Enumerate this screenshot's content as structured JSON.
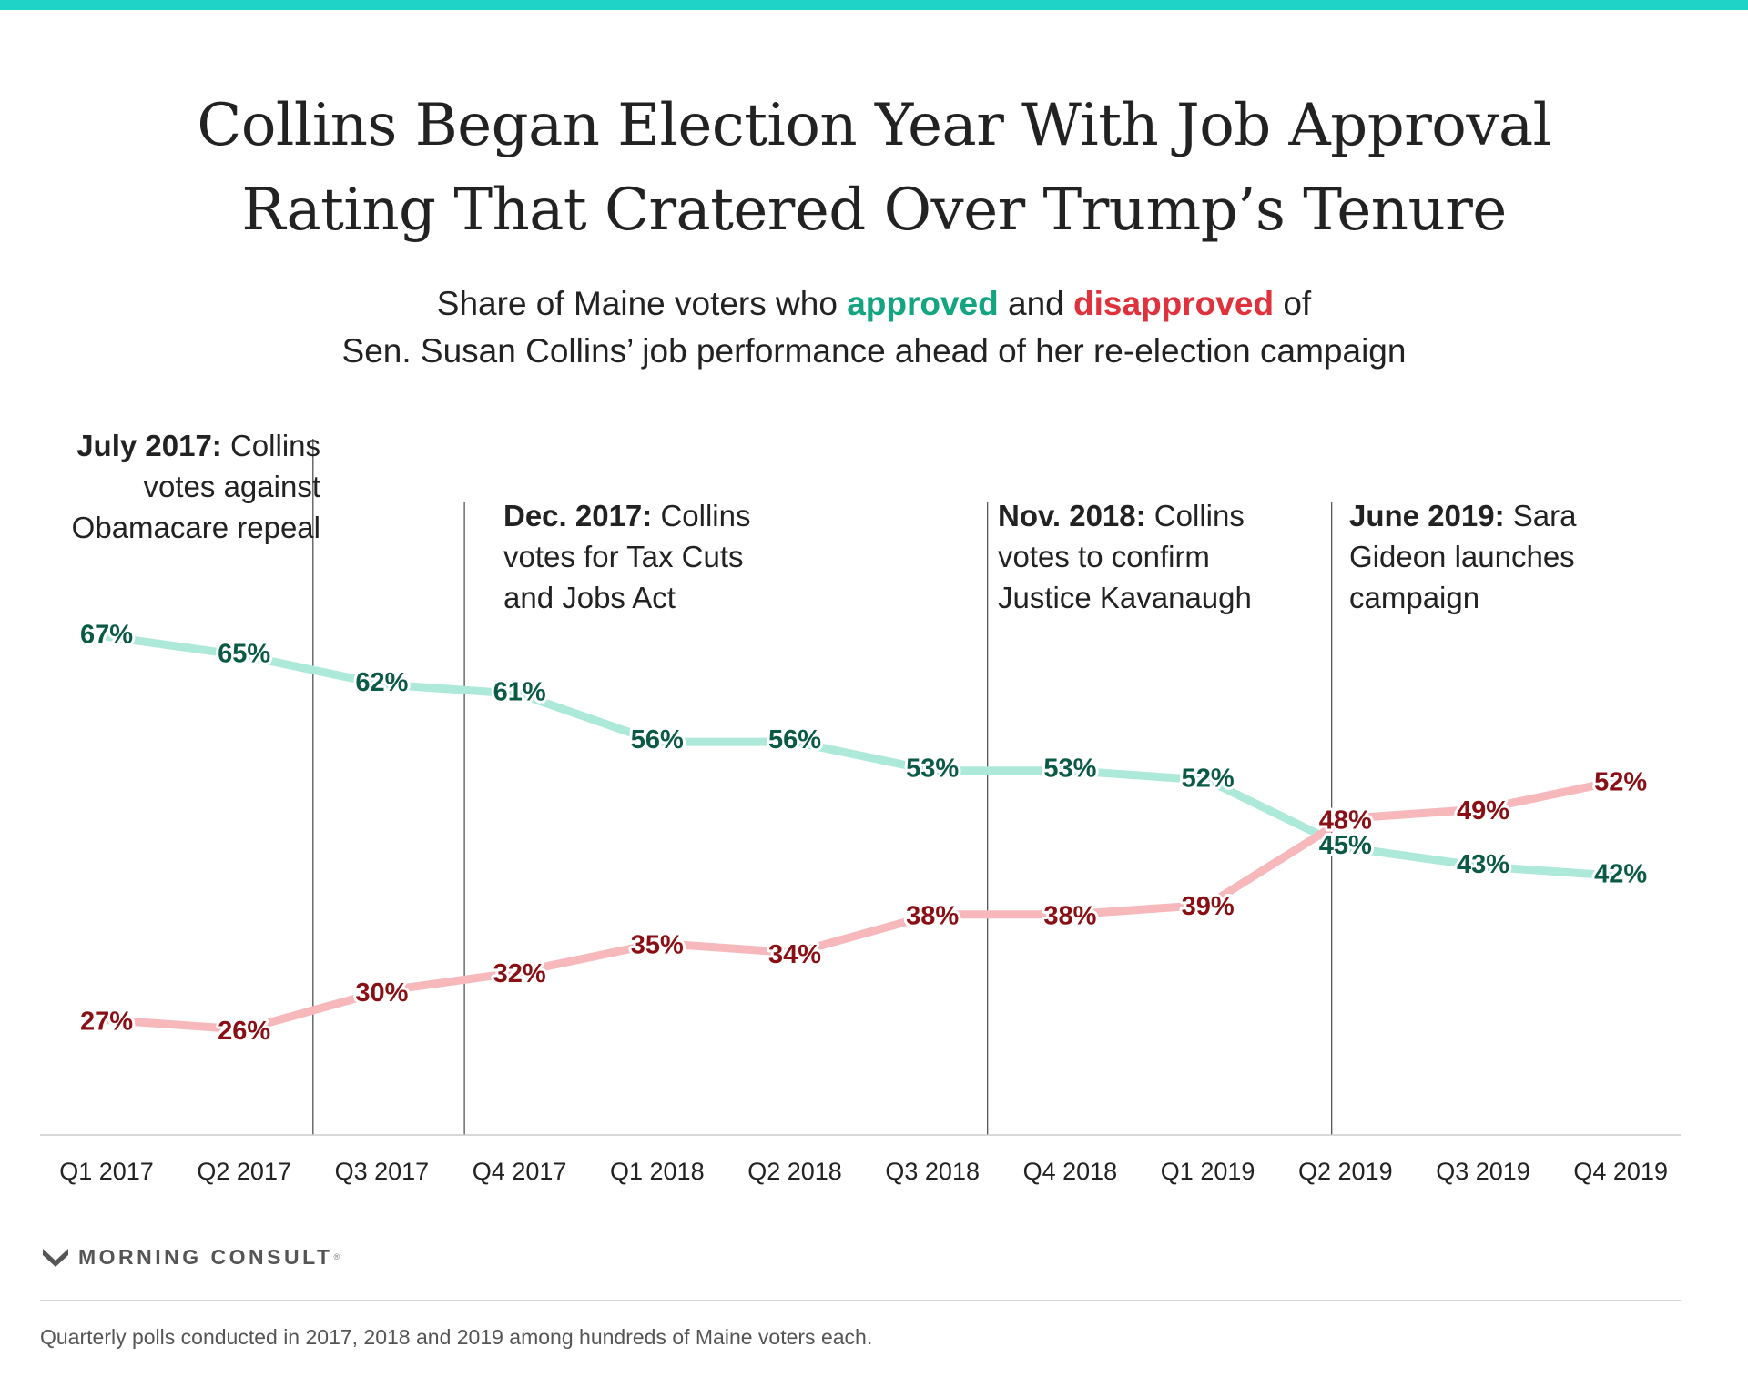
{
  "header": {
    "title_line1": "Collins Began Election Year With Job Approval",
    "title_line2": "Rating That Cratered Over Trump’s Tenure",
    "subtitle": {
      "part1": "Share of Maine voters who ",
      "approved": "approved",
      "part2": " and ",
      "disapproved": "disapproved",
      "part3": " of",
      "line2": "Sen. Susan Collins’ job performance ahead of her re-election campaign"
    }
  },
  "annotations": [
    {
      "bold": "July 2017:",
      "line1_rest": " Collins",
      "line2": "votes against",
      "line3": "Obamacare repeal"
    },
    {
      "bold": "Dec. 2017:",
      "line1_rest": " Collins",
      "line2": "votes for Tax Cuts",
      "line3": "and Jobs Act"
    },
    {
      "bold": "Nov. 2018:",
      "line1_rest": " Collins",
      "line2": "votes to confirm",
      "line3": "Justice Kavanaugh"
    },
    {
      "bold": "June 2019:",
      "line1_rest": " Sara",
      "line2": "Gideon launches",
      "line3": "campaign"
    }
  ],
  "chart_data": {
    "type": "line",
    "categories": [
      "Q1 2017",
      "Q2 2017",
      "Q3 2017",
      "Q4 2017",
      "Q1 2018",
      "Q2 2018",
      "Q3 2018",
      "Q4 2018",
      "Q1 2019",
      "Q2 2019",
      "Q3 2019",
      "Q4 2019"
    ],
    "series": [
      {
        "name": "approved",
        "values": [
          67,
          65,
          62,
          61,
          56,
          56,
          53,
          53,
          52,
          45,
          43,
          42
        ],
        "labels": [
          "67%",
          "65%",
          "62%",
          "61%",
          "56%",
          "56%",
          "53%",
          "53%",
          "52%",
          "45%",
          "43%",
          "42%"
        ]
      },
      {
        "name": "disapproved",
        "values": [
          27,
          26,
          30,
          32,
          35,
          34,
          38,
          38,
          39,
          48,
          49,
          52
        ],
        "labels": [
          "27%",
          "26%",
          "30%",
          "32%",
          "35%",
          "34%",
          "38%",
          "38%",
          "39%",
          "48%",
          "49%",
          "52%"
        ]
      }
    ],
    "event_lines_after_category": [
      1.5,
      2.6,
      6.4,
      8.9
    ],
    "ylim": [
      15,
      75
    ],
    "grid": false,
    "colors": {
      "approved_line": "#ade9d9",
      "approved_label": "#0b5a45",
      "disapproved_line": "#f7b8bc",
      "disapproved_label": "#8a0f14",
      "event_line": "#555555",
      "axis": "#cccccc"
    }
  },
  "branding": {
    "logo_text": "MORNING CONSULT",
    "logo_tm": "®",
    "logo_icon": "m-chevron-icon"
  },
  "footnote": "Quarterly polls conducted in 2017, 2018 and 2019 among hundreds of Maine voters each."
}
